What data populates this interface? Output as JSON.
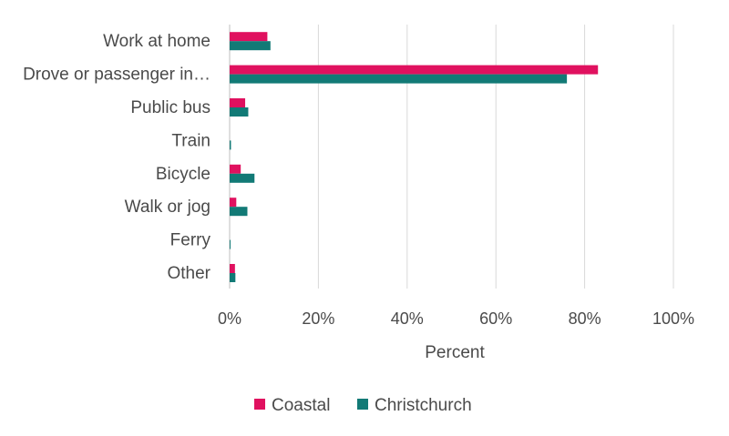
{
  "chart_data": {
    "type": "bar",
    "orientation": "horizontal",
    "categories": [
      "Work at home",
      "Drove or passenger in…",
      "Public bus",
      "Train",
      "Bicycle",
      "Walk or jog",
      "Ferry",
      "Other"
    ],
    "series": [
      {
        "name": "Coastal",
        "color": "#e0115f",
        "values": [
          8.5,
          83,
          3.5,
          0,
          2.5,
          1.5,
          0,
          1.2
        ]
      },
      {
        "name": "Christchurch",
        "color": "#127a76",
        "values": [
          9.2,
          76,
          4.2,
          0.3,
          5.6,
          4.0,
          0.2,
          1.3
        ]
      }
    ],
    "xlim": [
      0,
      100
    ],
    "x_ticks": [
      "0%",
      "20%",
      "40%",
      "60%",
      "80%",
      "100%"
    ],
    "xlabel": "Percent",
    "ylabel": "",
    "grid": "vertical",
    "legend_position": "bottom"
  }
}
